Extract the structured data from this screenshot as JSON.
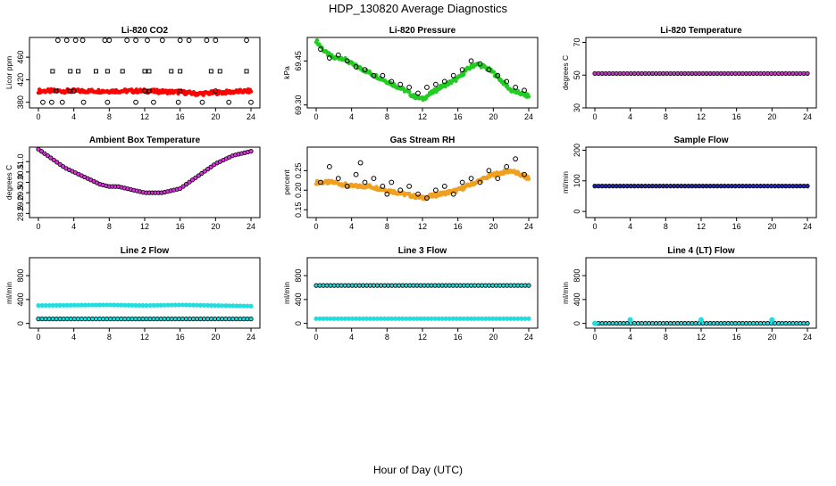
{
  "figure": {
    "title": "HDP_130820  Average Diagnostics",
    "xlabel": "Hour of Day (UTC)"
  },
  "chart_data": [
    {
      "type": "scatter",
      "title": "Li-820 CO2",
      "ylabel": "Licor ppm",
      "xlim": [
        0,
        24
      ],
      "ylim": [
        370,
        495
      ],
      "xticks": [
        "0",
        "4",
        "8",
        "12",
        "16",
        "20",
        "24"
      ],
      "yticks": [
        "380",
        "420",
        "460"
      ],
      "colors": {
        "primary": "#ff0000",
        "secondary": "#000000"
      },
      "series": [
        {
          "kind": "band",
          "values": [
            [
              0,
              400
            ],
            [
              4,
              400
            ],
            [
              8,
              400
            ],
            [
              12,
              400
            ],
            [
              16,
              398
            ],
            [
              18,
              395
            ],
            [
              20,
              397
            ],
            [
              24,
              400
            ]
          ]
        },
        {
          "kind": "points-circle",
          "values": [
            [
              0.5,
              380
            ],
            [
              1.5,
              380
            ],
            [
              2.2,
              490
            ],
            [
              3.2,
              490
            ],
            [
              4.2,
              490
            ],
            [
              5,
              490
            ],
            [
              7.5,
              490
            ],
            [
              8,
              490
            ],
            [
              10,
              490
            ],
            [
              11,
              490
            ],
            [
              12.3,
              490
            ],
            [
              14,
              490
            ],
            [
              16,
              490
            ],
            [
              17,
              490
            ],
            [
              19,
              490
            ],
            [
              20,
              490
            ],
            [
              23.5,
              490
            ],
            [
              2.7,
              380
            ],
            [
              5.1,
              380
            ],
            [
              7.8,
              380
            ],
            [
              11,
              380
            ],
            [
              13,
              380
            ],
            [
              15.8,
              380
            ],
            [
              18.5,
              380
            ],
            [
              21.5,
              380
            ],
            [
              24,
              380
            ],
            [
              4,
              400
            ],
            [
              12,
              400
            ],
            [
              20,
              400
            ]
          ]
        },
        {
          "kind": "points-square",
          "values": [
            [
              1.6,
              435
            ],
            [
              3.6,
              435
            ],
            [
              4.5,
              435
            ],
            [
              6.5,
              435
            ],
            [
              7.8,
              435
            ],
            [
              9.5,
              435
            ],
            [
              12,
              435
            ],
            [
              12.5,
              435
            ],
            [
              15,
              435
            ],
            [
              16,
              435
            ],
            [
              19.5,
              435
            ],
            [
              20.5,
              435
            ],
            [
              23.5,
              435
            ],
            [
              2,
              400
            ],
            [
              3.5,
              400
            ],
            [
              12.5,
              400
            ],
            [
              16,
              400
            ]
          ]
        }
      ]
    },
    {
      "type": "scatter",
      "title": "Li-820 Pressure",
      "ylabel": "kPa",
      "xlim": [
        0,
        24
      ],
      "ylim": [
        69.29,
        69.53
      ],
      "xticks": [
        "0",
        "4",
        "8",
        "12",
        "16",
        "20",
        "24"
      ],
      "yticks": [
        "69.30",
        "69.45"
      ],
      "colors": {
        "primary": "#22cc22",
        "secondary": "#000000"
      },
      "series": [
        {
          "kind": "band",
          "values": [
            [
              0,
              69.52
            ],
            [
              1,
              69.48
            ],
            [
              2,
              69.46
            ],
            [
              3,
              69.46
            ],
            [
              4,
              69.44
            ],
            [
              6,
              69.41
            ],
            [
              8,
              69.38
            ],
            [
              10,
              69.35
            ],
            [
              11,
              69.33
            ],
            [
              12,
              69.32
            ],
            [
              13,
              69.34
            ],
            [
              14,
              69.36
            ],
            [
              16,
              69.39
            ],
            [
              17,
              69.42
            ],
            [
              18,
              69.44
            ],
            [
              19,
              69.43
            ],
            [
              20,
              69.41
            ],
            [
              21,
              69.38
            ],
            [
              22,
              69.35
            ],
            [
              23,
              69.34
            ],
            [
              24,
              69.33
            ]
          ]
        },
        {
          "kind": "points-circle",
          "values": [
            [
              0.5,
              69.49
            ],
            [
              1.5,
              69.46
            ],
            [
              2.5,
              69.47
            ],
            [
              3.5,
              69.45
            ],
            [
              4.5,
              69.43
            ],
            [
              5.5,
              69.42
            ],
            [
              6.5,
              69.4
            ],
            [
              7.5,
              69.4
            ],
            [
              8.5,
              69.38
            ],
            [
              9.5,
              69.37
            ],
            [
              10.5,
              69.36
            ],
            [
              11.5,
              69.34
            ],
            [
              12.5,
              69.36
            ],
            [
              13.5,
              69.37
            ],
            [
              14.5,
              69.38
            ],
            [
              15.5,
              69.4
            ],
            [
              16.5,
              69.42
            ],
            [
              17.5,
              69.45
            ],
            [
              18.5,
              69.44
            ],
            [
              19.5,
              69.42
            ],
            [
              20.5,
              69.4
            ],
            [
              21.5,
              69.38
            ],
            [
              22.5,
              69.36
            ],
            [
              23.5,
              69.35
            ]
          ]
        }
      ]
    },
    {
      "type": "scatter",
      "title": "Li-820 Temperature",
      "ylabel": "degrees C",
      "xlim": [
        0,
        24
      ],
      "ylim": [
        30,
        73
      ],
      "xticks": [
        "0",
        "4",
        "8",
        "12",
        "16",
        "20",
        "24"
      ],
      "yticks": [
        "30",
        "50",
        "70"
      ],
      "colors": {
        "primary": "#cc33cc",
        "secondary": "#000000"
      },
      "series": [
        {
          "kind": "line-dots",
          "values": [
            [
              0,
              51
            ],
            [
              24,
              51
            ]
          ],
          "n": 60
        }
      ]
    },
    {
      "type": "scatter",
      "title": "Ambient Box Temperature",
      "ylabel": "degrees C",
      "xlim": [
        0,
        24
      ],
      "ylim": [
        28.3,
        31.7
      ],
      "xticks": [
        "0",
        "4",
        "8",
        "12",
        "16",
        "20",
        "24"
      ],
      "yticks": [
        "28.5",
        "29.0",
        "29.5",
        "30.0",
        "30.5",
        "31.0"
      ],
      "colors": {
        "primary": "#dd33dd",
        "secondary": "#000000"
      },
      "series": [
        {
          "kind": "line-dots",
          "values": [
            [
              0,
              31.6
            ],
            [
              1,
              31.3
            ],
            [
              2,
              31.0
            ],
            [
              3,
              30.7
            ],
            [
              4,
              30.5
            ],
            [
              5,
              30.3
            ],
            [
              6,
              30.1
            ],
            [
              7,
              29.9
            ],
            [
              8,
              29.8
            ],
            [
              9,
              29.8
            ],
            [
              10,
              29.7
            ],
            [
              11,
              29.6
            ],
            [
              12,
              29.5
            ],
            [
              13,
              29.5
            ],
            [
              14,
              29.5
            ],
            [
              15,
              29.6
            ],
            [
              16,
              29.7
            ],
            [
              17,
              30.0
            ],
            [
              18,
              30.3
            ],
            [
              19,
              30.6
            ],
            [
              20,
              30.9
            ],
            [
              21,
              31.1
            ],
            [
              22,
              31.3
            ],
            [
              23,
              31.4
            ],
            [
              24,
              31.5
            ]
          ],
          "n": 70
        }
      ]
    },
    {
      "type": "scatter",
      "title": "Gas Stream RH",
      "ylabel": "percent",
      "xlim": [
        0,
        24
      ],
      "ylim": [
        0.13,
        0.31
      ],
      "xticks": [
        "0",
        "4",
        "8",
        "12",
        "16",
        "20",
        "24"
      ],
      "yticks": [
        "0.15",
        "0.20",
        "0.25"
      ],
      "colors": {
        "primary": "#f0a020",
        "secondary": "#000000"
      },
      "series": [
        {
          "kind": "band",
          "values": [
            [
              0,
              0.22
            ],
            [
              2,
              0.22
            ],
            [
              4,
              0.21
            ],
            [
              6,
              0.21
            ],
            [
              8,
              0.2
            ],
            [
              10,
              0.19
            ],
            [
              12,
              0.18
            ],
            [
              14,
              0.19
            ],
            [
              16,
              0.2
            ],
            [
              18,
              0.22
            ],
            [
              20,
              0.24
            ],
            [
              22,
              0.25
            ],
            [
              24,
              0.23
            ]
          ]
        },
        {
          "kind": "points-circle",
          "values": [
            [
              0.5,
              0.22
            ],
            [
              1.5,
              0.26
            ],
            [
              2.5,
              0.23
            ],
            [
              3.5,
              0.21
            ],
            [
              4.5,
              0.24
            ],
            [
              5,
              0.27
            ],
            [
              5.5,
              0.22
            ],
            [
              6.5,
              0.23
            ],
            [
              7.5,
              0.21
            ],
            [
              8,
              0.19
            ],
            [
              8.5,
              0.22
            ],
            [
              9.5,
              0.2
            ],
            [
              10.5,
              0.21
            ],
            [
              11.5,
              0.19
            ],
            [
              12.5,
              0.18
            ],
            [
              13.5,
              0.2
            ],
            [
              14.5,
              0.21
            ],
            [
              15.5,
              0.19
            ],
            [
              16.5,
              0.22
            ],
            [
              17.5,
              0.23
            ],
            [
              18.5,
              0.22
            ],
            [
              19.5,
              0.25
            ],
            [
              20.5,
              0.23
            ],
            [
              21.5,
              0.26
            ],
            [
              22.5,
              0.28
            ],
            [
              23.5,
              0.24
            ]
          ]
        }
      ]
    },
    {
      "type": "scatter",
      "title": "Sample Flow",
      "ylabel": "ml/min",
      "xlim": [
        0,
        24
      ],
      "ylim": [
        -20,
        210
      ],
      "xticks": [
        "0",
        "4",
        "8",
        "12",
        "16",
        "20",
        "24"
      ],
      "yticks": [
        "0",
        "100",
        "200"
      ],
      "colors": {
        "primary": "#2222cc",
        "secondary": "#000000"
      },
      "series": [
        {
          "kind": "line-dots",
          "values": [
            [
              0,
              83
            ],
            [
              24,
              83
            ]
          ],
          "n": 60
        }
      ]
    },
    {
      "type": "scatter",
      "title": "Line 2 Flow",
      "ylabel": "ml/min",
      "xlim": [
        0,
        24
      ],
      "ylim": [
        -80,
        1100
      ],
      "xticks": [
        "0",
        "4",
        "8",
        "12",
        "16",
        "20",
        "24"
      ],
      "yticks": [
        "0",
        "400",
        "800"
      ],
      "colors": {
        "primary": "#22dddd",
        "secondary": "#000000"
      },
      "series": [
        {
          "kind": "line-dots",
          "values": [
            [
              0,
              300
            ],
            [
              8,
              310
            ],
            [
              12,
              300
            ],
            [
              16,
              310
            ],
            [
              20,
              300
            ],
            [
              24,
              290
            ]
          ],
          "n": 60,
          "mark": "primary"
        },
        {
          "kind": "line-dots",
          "values": [
            [
              0,
              75
            ],
            [
              24,
              75
            ]
          ],
          "n": 60
        }
      ]
    },
    {
      "type": "scatter",
      "title": "Line 3 Flow",
      "ylabel": "ml/min",
      "xlim": [
        0,
        24
      ],
      "ylim": [
        -80,
        1100
      ],
      "xticks": [
        "0",
        "4",
        "8",
        "12",
        "16",
        "20",
        "24"
      ],
      "yticks": [
        "0",
        "400",
        "800"
      ],
      "colors": {
        "primary": "#22dddd",
        "secondary": "#000000"
      },
      "series": [
        {
          "kind": "line-dots",
          "values": [
            [
              0,
              635
            ],
            [
              24,
              635
            ]
          ],
          "n": 60
        },
        {
          "kind": "line-dots",
          "values": [
            [
              0,
              80
            ],
            [
              24,
              80
            ]
          ],
          "n": 60,
          "mark": "primary"
        }
      ]
    },
    {
      "type": "scatter",
      "title": "Line 4 (LT) Flow",
      "ylabel": "ml/min",
      "xlim": [
        0,
        24
      ],
      "ylim": [
        -80,
        1100
      ],
      "xticks": [
        "0",
        "4",
        "8",
        "12",
        "16",
        "20",
        "24"
      ],
      "yticks": [
        "0",
        "400",
        "800"
      ],
      "colors": {
        "primary": "#22dddd",
        "secondary": "#000000"
      },
      "series": [
        {
          "kind": "line-dots",
          "values": [
            [
              0,
              0
            ],
            [
              24,
              0
            ]
          ],
          "n": 60
        },
        {
          "kind": "points-filled",
          "values": [
            [
              0,
              0
            ],
            [
              4,
              60
            ],
            [
              12,
              60
            ],
            [
              20,
              60
            ]
          ]
        }
      ]
    }
  ]
}
